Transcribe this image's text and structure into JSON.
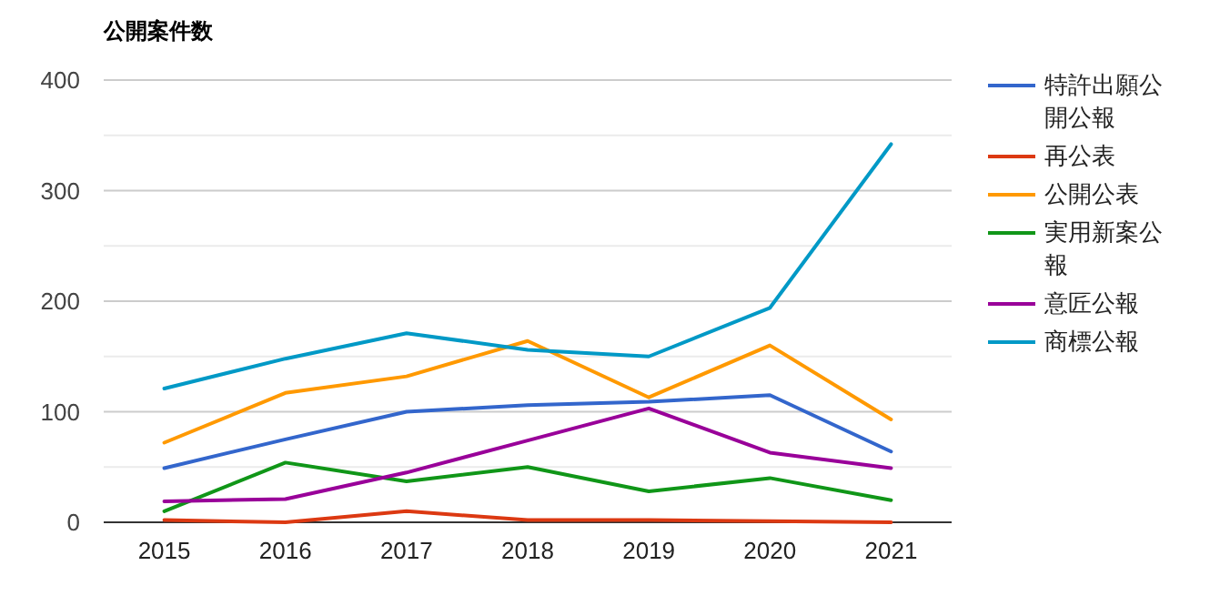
{
  "chart_data": {
    "type": "line",
    "title": "公開案件数",
    "categories": [
      "2015",
      "2016",
      "2017",
      "2018",
      "2019",
      "2020",
      "2021"
    ],
    "ylim": [
      0,
      400
    ],
    "yticks": [
      0,
      {
        "value": 50,
        "label": null
      },
      100,
      {
        "value": 150,
        "label": null
      },
      200,
      {
        "value": 250,
        "label": null
      },
      300,
      {
        "value": 350,
        "label": null
      },
      400
    ],
    "grid": "y",
    "legend": "right",
    "marker": "none",
    "line_style": "solid",
    "series": [
      {
        "name": "特許出願公開公報",
        "color": "#3366cc",
        "values": [
          49,
          75,
          100,
          106,
          109,
          115,
          64
        ]
      },
      {
        "name": "再公表",
        "color": "#dc3912",
        "values": [
          2,
          0,
          10,
          2,
          2,
          1,
          0
        ]
      },
      {
        "name": "公開公表",
        "color": "#ff9900",
        "values": [
          72,
          117,
          132,
          164,
          113,
          160,
          93
        ]
      },
      {
        "name": "実用新案公報",
        "color": "#109618",
        "values": [
          10,
          54,
          37,
          50,
          28,
          40,
          20
        ]
      },
      {
        "name": "意匠公報",
        "color": "#990099",
        "values": [
          19,
          21,
          45,
          74,
          103,
          63,
          49
        ]
      },
      {
        "name": "商標公報",
        "color": "#0099c6",
        "values": [
          121,
          148,
          171,
          156,
          150,
          194,
          342
        ]
      }
    ]
  }
}
